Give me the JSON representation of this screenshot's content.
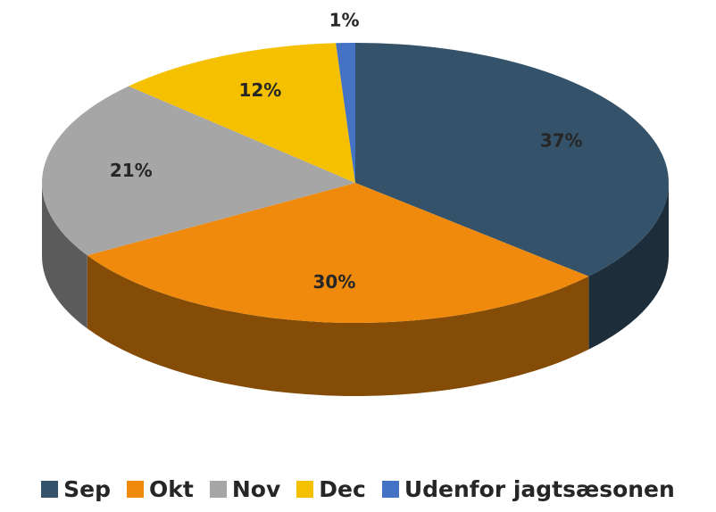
{
  "chart_data": {
    "type": "pie",
    "categories": [
      "Sep",
      "Okt",
      "Nov",
      "Dec",
      "Udenfor jagtsæsonen"
    ],
    "values": [
      37,
      30,
      21,
      12,
      1
    ],
    "value_labels": [
      "37%",
      "30%",
      "21%",
      "12%",
      "1%"
    ],
    "colors": [
      "#34536a",
      "#f08a0c",
      "#a6a6a6",
      "#f5c000",
      "#4472c4"
    ]
  }
}
